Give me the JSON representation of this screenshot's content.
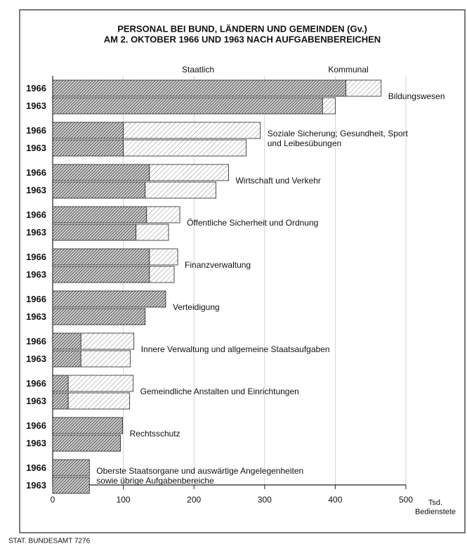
{
  "chart_data": {
    "type": "grouped_stacked_barh",
    "title": [
      "PERSONAL BEI BUND, LÄNDERN UND GEMEINDEN (Gv.)",
      "AM 2. OKTOBER 1966 UND 1963 NACH AUFGABENBEREICHEN"
    ],
    "years": [
      "1966",
      "1963"
    ],
    "categories": [
      "Bildungswesen",
      "Soziale Sicherung; Gesundheit, Sport\nund Leibesübungen",
      "Wirtschaft und Verkehr",
      "Öffentliche Sicherheit und Ordnung",
      "Finanzverwaltung",
      "Verteidigung",
      "Innere Verwaltung und allgemeine Staatsaufgaben",
      "Gemeindliche Anstalten und Einrichtungen",
      "Rechtsschutz",
      "Oberste Staatsorgane und auswärtige Angelegenheiten\nsowie übrige Aufgabenbereiche"
    ],
    "series": [
      {
        "name": "Staatlich",
        "color": "#3a3a3a",
        "values": [
          [
            415,
            382
          ],
          [
            100,
            100
          ],
          [
            137,
            131
          ],
          [
            133,
            118
          ],
          [
            137,
            137
          ],
          [
            160,
            131
          ],
          [
            40,
            40
          ],
          [
            22,
            22
          ],
          [
            99,
            96
          ],
          [
            52,
            52
          ]
        ]
      },
      {
        "name": "Kommunal",
        "color": "#8a8a8a",
        "values": [
          [
            50,
            18
          ],
          [
            194,
            174
          ],
          [
            112,
            100
          ],
          [
            47,
            46
          ],
          [
            40,
            35
          ],
          [
            0,
            0
          ],
          [
            75,
            70
          ],
          [
            92,
            87
          ],
          [
            0,
            0
          ],
          [
            0,
            0
          ]
        ]
      }
    ],
    "xlim": [
      0,
      500
    ],
    "xticks": [
      0,
      100,
      200,
      300,
      400,
      500
    ],
    "xlabel": "Tsd.\nBedienstete",
    "source": "STAT. BUNDESAMT 7276"
  }
}
